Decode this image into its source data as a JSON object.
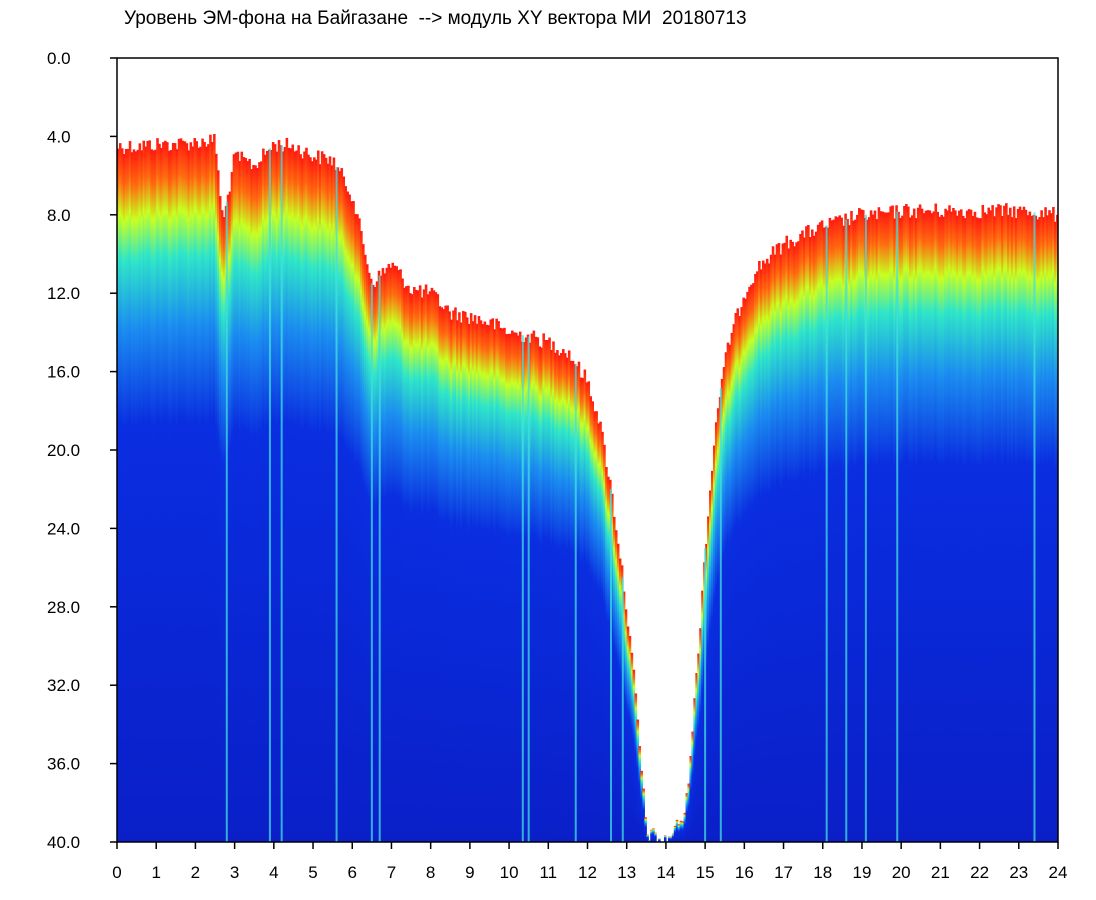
{
  "chart_data": {
    "type": "heatmap",
    "title": "Уровень ЭМ-фона на Байгазане  --> модуль XY вектора МИ  20180713",
    "xlabel": "",
    "ylabel": "",
    "xlim": [
      0,
      24
    ],
    "ylim": [
      0,
      40
    ],
    "y_inverted": true,
    "grid": false,
    "x_ticks": [
      "0",
      "1",
      "2",
      "3",
      "4",
      "5",
      "6",
      "7",
      "8",
      "9",
      "10",
      "11",
      "12",
      "13",
      "14",
      "15",
      "16",
      "17",
      "18",
      "19",
      "20",
      "21",
      "22",
      "23",
      "24"
    ],
    "y_ticks": [
      "0.0",
      "4.0",
      "8.0",
      "12.0",
      "16.0",
      "20.0",
      "24.0",
      "28.0",
      "32.0",
      "36.0",
      "40.0"
    ],
    "x_tick_values": [
      0,
      1,
      2,
      3,
      4,
      5,
      6,
      7,
      8,
      9,
      10,
      11,
      12,
      13,
      14,
      15,
      16,
      17,
      18,
      19,
      20,
      21,
      22,
      23,
      24
    ],
    "y_tick_values": [
      0,
      4,
      8,
      12,
      16,
      20,
      24,
      28,
      32,
      36,
      40
    ],
    "colors": {
      "low": "#0a1fd8",
      "mid_low": "#1b8cf0",
      "mid": "#2fe6c8",
      "mid_high": "#b6ff1e",
      "high": "#ff1a10",
      "background": "#ffffff"
    },
    "upper_boundary": {
      "hours": [
        0,
        0.5,
        1,
        1.5,
        2,
        2.5,
        2.7,
        3,
        3.5,
        4,
        4.5,
        5,
        5.5,
        6,
        6.5,
        7,
        7.5,
        8,
        8.5,
        9,
        9.5,
        10,
        10.5,
        11,
        11.5,
        12,
        12.3,
        12.6,
        12.9,
        13.2,
        13.5,
        14,
        14.5,
        14.8,
        15,
        15.3,
        15.6,
        16,
        16.3,
        16.6,
        17,
        17.5,
        18,
        18.5,
        19,
        19.5,
        20,
        21,
        22,
        23,
        24
      ],
      "level": [
        4.5,
        4.5,
        4.4,
        4.4,
        4.3,
        4.2,
        8.5,
        5.0,
        5.5,
        4.4,
        4.5,
        5.0,
        5.2,
        7.0,
        11.5,
        10.5,
        11.8,
        12.0,
        13.0,
        13.2,
        13.5,
        14.0,
        14.2,
        14.5,
        15.0,
        16.5,
        18.5,
        22.0,
        26.5,
        32.0,
        39.5,
        40,
        38.5,
        31.0,
        25.0,
        18.0,
        14.5,
        12.0,
        10.8,
        10.2,
        9.5,
        9.0,
        8.6,
        8.3,
        8.0,
        8.0,
        7.8,
        7.8,
        7.8,
        7.8,
        8.0
      ]
    }
  }
}
